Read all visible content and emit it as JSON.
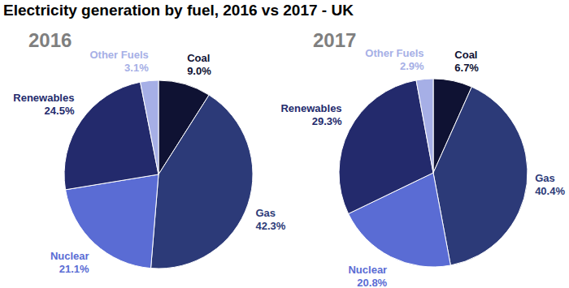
{
  "title": "Electricity generation by fuel, 2016 vs 2017 - UK",
  "chart_data": [
    {
      "type": "pie",
      "title": "2016",
      "categories": [
        "Coal",
        "Gas",
        "Nuclear",
        "Renewables",
        "Other Fuels"
      ],
      "values": [
        9.0,
        42.3,
        21.1,
        24.5,
        3.1
      ],
      "value_labels": [
        "9.0%",
        "42.3%",
        "21.1%",
        "24.5%",
        "3.1%"
      ],
      "colors": [
        "#0f1233",
        "#2c3a78",
        "#5a6cd4",
        "#232a6c",
        "#a6afe6"
      ],
      "data_labels": true
    },
    {
      "type": "pie",
      "title": "2017",
      "categories": [
        "Coal",
        "Gas",
        "Nuclear",
        "Renewables",
        "Other Fuels"
      ],
      "values": [
        6.7,
        40.4,
        20.8,
        29.3,
        2.9
      ],
      "value_labels": [
        "6.7%",
        "40.4%",
        "20.8%",
        "29.3%",
        "2.9%"
      ],
      "colors": [
        "#0f1233",
        "#2c3a78",
        "#5a6cd4",
        "#232a6c",
        "#a6afe6"
      ],
      "data_labels": true
    }
  ]
}
